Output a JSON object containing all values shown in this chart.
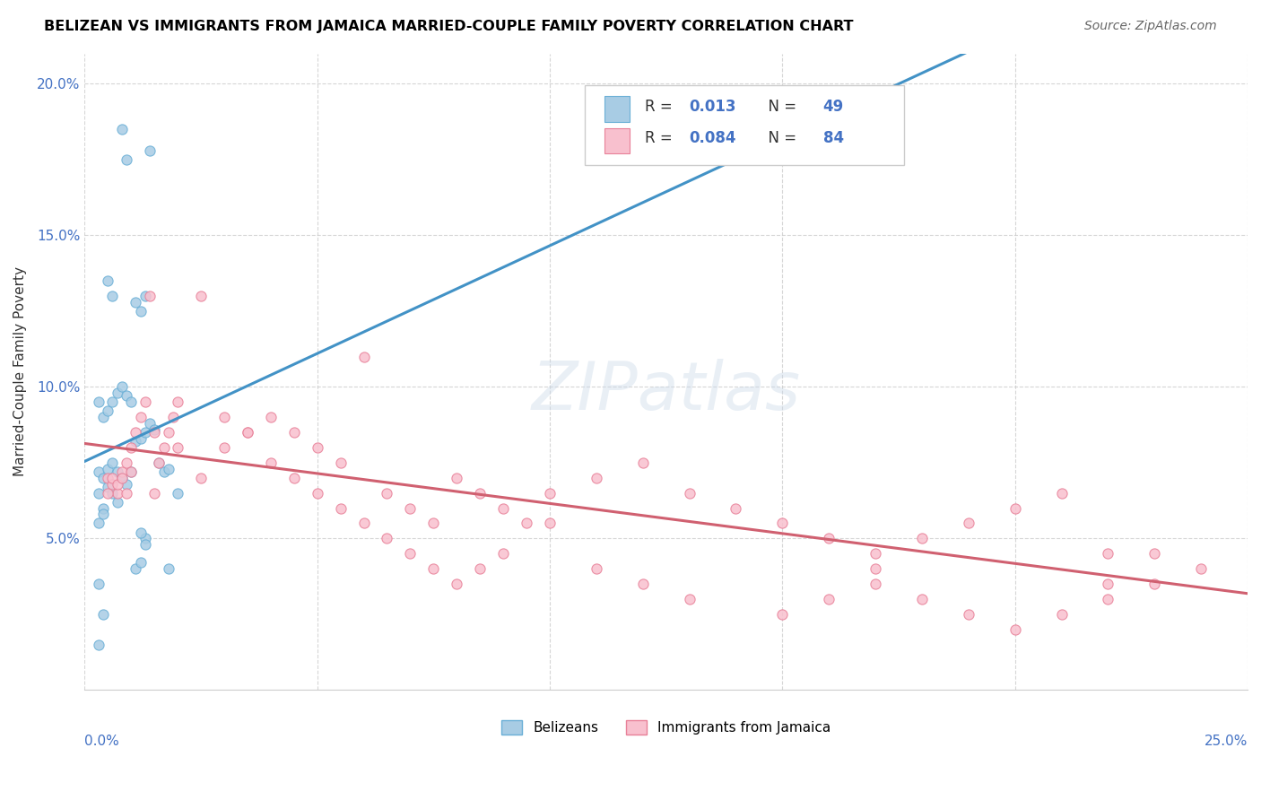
{
  "title": "BELIZEAN VS IMMIGRANTS FROM JAMAICA MARRIED-COUPLE FAMILY POVERTY CORRELATION CHART",
  "source": "Source: ZipAtlas.com",
  "ylabel": "Married-Couple Family Poverty",
  "xlim": [
    0.0,
    0.25
  ],
  "ylim": [
    0.0,
    0.21
  ],
  "yticks": [
    0.05,
    0.1,
    0.15,
    0.2
  ],
  "ytick_labels": [
    "5.0%",
    "10.0%",
    "15.0%",
    "20.0%"
  ],
  "color_blue_fill": "#a8cce4",
  "color_blue_edge": "#6aafd6",
  "color_pink_fill": "#f8c0ce",
  "color_pink_edge": "#e88098",
  "color_blue_line": "#4292c6",
  "color_blue_dash": "#9ec9e0",
  "color_pink_line": "#d06070",
  "color_axis": "#4472c4",
  "legend_r1_val": "0.013",
  "legend_r1_n": "49",
  "legend_r2_val": "0.084",
  "legend_r2_n": "84",
  "watermark": "ZIPatlas",
  "bel_x": [
    0.008,
    0.009,
    0.014,
    0.005,
    0.006,
    0.011,
    0.012,
    0.013,
    0.003,
    0.004,
    0.005,
    0.006,
    0.007,
    0.008,
    0.009,
    0.01,
    0.011,
    0.012,
    0.013,
    0.014,
    0.015,
    0.016,
    0.017,
    0.018,
    0.003,
    0.004,
    0.005,
    0.006,
    0.007,
    0.008,
    0.009,
    0.01,
    0.011,
    0.012,
    0.013,
    0.003,
    0.004,
    0.005,
    0.006,
    0.007,
    0.003,
    0.004,
    0.003,
    0.004,
    0.003,
    0.012,
    0.013,
    0.018,
    0.02
  ],
  "bel_y": [
    0.185,
    0.175,
    0.178,
    0.135,
    0.13,
    0.128,
    0.125,
    0.13,
    0.095,
    0.09,
    0.092,
    0.095,
    0.098,
    0.1,
    0.097,
    0.095,
    0.082,
    0.083,
    0.085,
    0.088,
    0.086,
    0.075,
    0.072,
    0.073,
    0.072,
    0.07,
    0.073,
    0.075,
    0.072,
    0.07,
    0.068,
    0.072,
    0.04,
    0.042,
    0.05,
    0.065,
    0.06,
    0.067,
    0.065,
    0.062,
    0.055,
    0.058,
    0.035,
    0.025,
    0.015,
    0.052,
    0.048,
    0.04,
    0.065
  ],
  "jam_x": [
    0.005,
    0.006,
    0.007,
    0.008,
    0.009,
    0.01,
    0.011,
    0.012,
    0.013,
    0.014,
    0.015,
    0.016,
    0.017,
    0.018,
    0.019,
    0.02,
    0.025,
    0.03,
    0.035,
    0.04,
    0.045,
    0.05,
    0.055,
    0.06,
    0.065,
    0.07,
    0.075,
    0.08,
    0.085,
    0.09,
    0.095,
    0.1,
    0.11,
    0.12,
    0.13,
    0.14,
    0.15,
    0.16,
    0.17,
    0.18,
    0.19,
    0.2,
    0.21,
    0.22,
    0.23,
    0.025,
    0.03,
    0.035,
    0.04,
    0.045,
    0.05,
    0.055,
    0.06,
    0.065,
    0.07,
    0.075,
    0.08,
    0.085,
    0.09,
    0.1,
    0.11,
    0.12,
    0.13,
    0.15,
    0.16,
    0.17,
    0.18,
    0.19,
    0.2,
    0.21,
    0.22,
    0.23,
    0.24,
    0.005,
    0.006,
    0.007,
    0.008,
    0.009,
    0.01,
    0.015,
    0.02,
    0.17,
    0.22,
    0.16
  ],
  "jam_y": [
    0.07,
    0.068,
    0.065,
    0.072,
    0.075,
    0.08,
    0.085,
    0.09,
    0.095,
    0.13,
    0.065,
    0.075,
    0.08,
    0.085,
    0.09,
    0.095,
    0.13,
    0.09,
    0.085,
    0.09,
    0.085,
    0.08,
    0.075,
    0.11,
    0.065,
    0.06,
    0.055,
    0.07,
    0.065,
    0.06,
    0.055,
    0.065,
    0.07,
    0.075,
    0.065,
    0.06,
    0.055,
    0.05,
    0.045,
    0.05,
    0.055,
    0.06,
    0.065,
    0.045,
    0.045,
    0.07,
    0.08,
    0.085,
    0.075,
    0.07,
    0.065,
    0.06,
    0.055,
    0.05,
    0.045,
    0.04,
    0.035,
    0.04,
    0.045,
    0.055,
    0.04,
    0.035,
    0.03,
    0.025,
    0.03,
    0.035,
    0.03,
    0.025,
    0.02,
    0.025,
    0.03,
    0.035,
    0.04,
    0.065,
    0.07,
    0.068,
    0.07,
    0.065,
    0.072,
    0.085,
    0.08,
    0.04,
    0.035,
    0.175
  ]
}
